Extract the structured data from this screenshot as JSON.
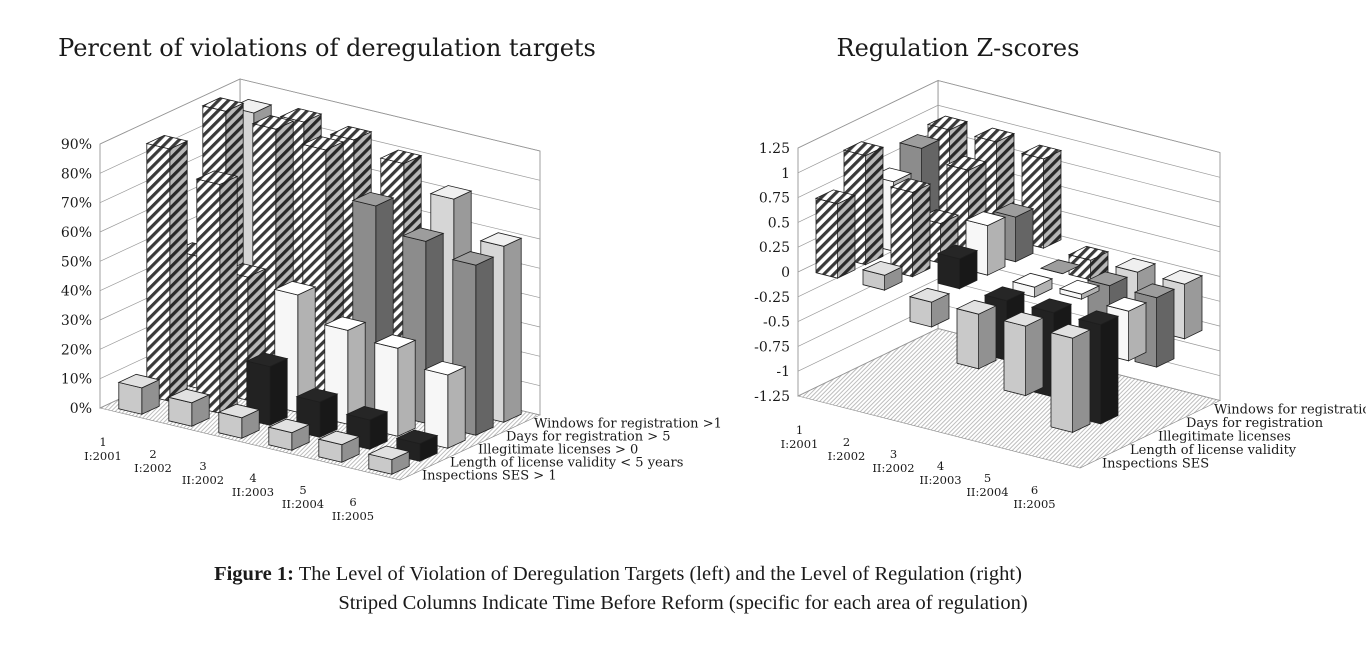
{
  "caption": {
    "lead": "Figure 1:",
    "line1": "The Level of Violation of Deregulation Targets (left) and the Level of Regulation (right)",
    "line2": "Striped Columns Indicate Time Before Reform (specific for each area of regulation)"
  },
  "chart_data": [
    {
      "type": "bar3d",
      "title": "Percent of violations of deregulation targets",
      "y_tick_labels": [
        "0%",
        "10%",
        "20%",
        "30%",
        "40%",
        "50%",
        "60%",
        "70%",
        "80%",
        "90%"
      ],
      "ylim": [
        0,
        90
      ],
      "categories": [
        {
          "num": "1",
          "period": "I:2001"
        },
        {
          "num": "2",
          "period": "I:2002"
        },
        {
          "num": "3",
          "period": "II:2002"
        },
        {
          "num": "4",
          "period": "II:2003"
        },
        {
          "num": "5",
          "period": "II:2004"
        },
        {
          "num": "6",
          "period": "II:2005"
        }
      ],
      "series": [
        {
          "name": "Inspections SES > 1",
          "values": [
            9,
            8,
            7,
            6,
            6,
            5
          ],
          "striped": [
            false,
            false,
            false,
            false,
            false,
            false
          ],
          "color": "#c9c9c9"
        },
        {
          "name": "Length of license validity < 5 years",
          "values": [
            86,
            78,
            20,
            12,
            10,
            6
          ],
          "striped": [
            true,
            true,
            false,
            false,
            false,
            false
          ],
          "color": "#222222"
        },
        {
          "name": "Illegitimate licenses > 0",
          "values": [
            45,
            42,
            40,
            32,
            30,
            25
          ],
          "striped": [
            true,
            true,
            false,
            false,
            false,
            false
          ],
          "color": "#f7f7f7"
        },
        {
          "name": "Days for registration > 5",
          "values": [
            90,
            88,
            85,
            70,
            62,
            58
          ],
          "striped": [
            true,
            true,
            true,
            false,
            false,
            false
          ],
          "color": "#8c8c8c"
        },
        {
          "name": "Windows for registration >1",
          "values": [
            85,
            86,
            84,
            80,
            72,
            60
          ],
          "striped": [
            false,
            true,
            true,
            true,
            false,
            false
          ],
          "color": "#d6d6d6"
        }
      ]
    },
    {
      "type": "bar3d",
      "title": "Regulation Z-scores",
      "y_tick_labels": [
        "-1.25",
        "-1",
        "-0.75",
        "-0.5",
        "-0.25",
        "0",
        "0.25",
        "0.5",
        "0.75",
        "1",
        "1.25"
      ],
      "ylim": [
        -1.25,
        1.25
      ],
      "categories": [
        {
          "num": "1",
          "period": "I:2001"
        },
        {
          "num": "2",
          "period": "I:2002"
        },
        {
          "num": "3",
          "period": "II:2002"
        },
        {
          "num": "4",
          "period": "II:2003"
        },
        {
          "num": "5",
          "period": "II:2004"
        },
        {
          "num": "6",
          "period": "II:2005"
        }
      ],
      "series": [
        {
          "name": "Inspections SES",
          "values": [
            0.75,
            0.15,
            -0.25,
            -0.55,
            -0.7,
            -0.95
          ],
          "striped": [
            true,
            false,
            false,
            false,
            false,
            false
          ],
          "color": "#c9c9c9"
        },
        {
          "name": "Length of license validity",
          "values": [
            1.1,
            0.85,
            0.3,
            -0.6,
            -0.85,
            -1.0
          ],
          "striped": [
            true,
            true,
            false,
            false,
            false,
            false
          ],
          "color": "#222222"
        },
        {
          "name": "Illegitimate licenses",
          "values": [
            0.7,
            0.4,
            0.5,
            -0.1,
            0.05,
            -0.5
          ],
          "striped": [
            false,
            true,
            false,
            false,
            false,
            false
          ],
          "color": "#f7f7f7"
        },
        {
          "name": "Days for registration",
          "values": [
            0.9,
            0.8,
            0.45,
            0.0,
            -0.45,
            -0.7
          ],
          "striped": [
            false,
            true,
            false,
            false,
            false,
            false
          ],
          "color": "#8c8c8c"
        },
        {
          "name": "Windows for registration",
          "values": [
            0.95,
            0.95,
            0.9,
            -0.2,
            -0.45,
            -0.55
          ],
          "striped": [
            true,
            true,
            true,
            true,
            false,
            false
          ],
          "color": "#d6d6d6"
        }
      ]
    }
  ]
}
